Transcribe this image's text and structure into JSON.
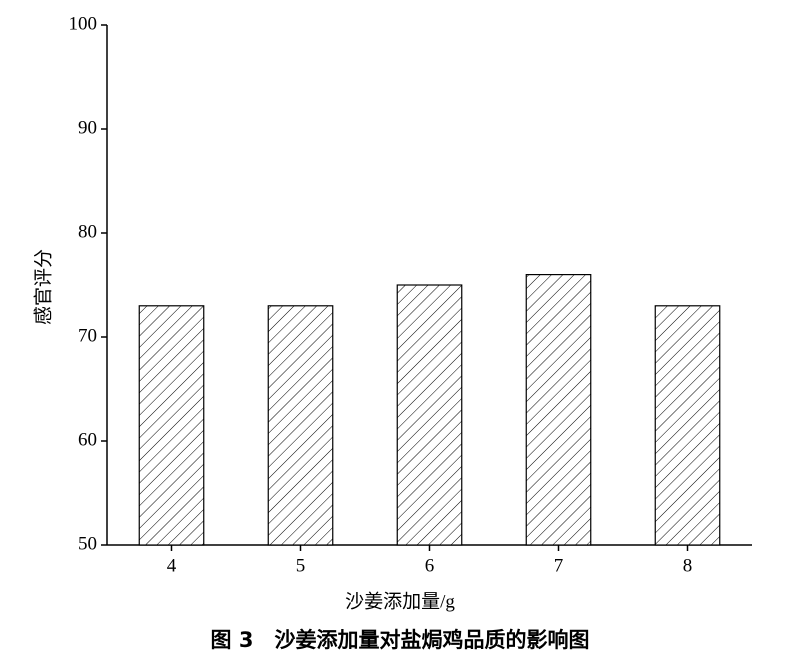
{
  "chart_data": {
    "type": "bar",
    "caption": "图 3　沙姜添加量对盐焗鸡品质的影响图",
    "x_label": "沙姜添加量/g",
    "y_label": "感官评分",
    "categories": [
      "4",
      "5",
      "6",
      "7",
      "8"
    ],
    "values": [
      73,
      73,
      75,
      76,
      73
    ],
    "color": "#000000",
    "ylim": [
      50,
      100
    ],
    "yticks": [
      50,
      60,
      70,
      80,
      90,
      100
    ]
  }
}
